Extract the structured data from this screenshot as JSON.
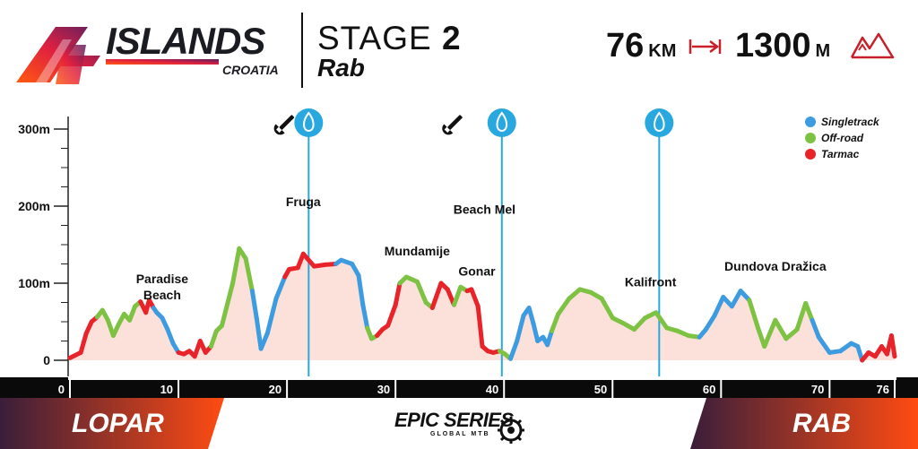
{
  "brand": {
    "number": "4",
    "name": "ISLANDS",
    "country": "CROATIA"
  },
  "stage": {
    "label": "STAGE",
    "number": "2",
    "name": "Rab"
  },
  "stats": {
    "distance": "76",
    "distance_unit": "KM",
    "elevation": "1300",
    "elevation_unit": "M",
    "distance_icon": "arrow-right-bar-icon",
    "elevation_icon": "mountain-peaks-icon"
  },
  "banners": {
    "start": "LOPAR",
    "finish": "RAB"
  },
  "sponsor": {
    "name": "EPIC SERIES",
    "tagline": "GLOBAL MTB",
    "icon": "gear-icon"
  },
  "colors": {
    "singletrack": "#3d9be0",
    "offroad": "#7dc242",
    "tarmac": "#e8232a",
    "fill": "#fbe1da",
    "water": "#29a8e0",
    "banner_dark": "#3a1e3a",
    "banner_light": "#ff4b12"
  },
  "chart_data": {
    "type": "area",
    "xlim": [
      0,
      76
    ],
    "ylim": [
      0,
      300
    ],
    "x_ticks": [
      0,
      10,
      20,
      30,
      40,
      50,
      60,
      70,
      76
    ],
    "y_ticks": [
      0,
      100,
      200,
      300
    ],
    "y_tick_labels": [
      "0",
      "100m",
      "200m",
      "300m"
    ],
    "grid": false,
    "legend_position": "top-right",
    "legend": [
      {
        "name": "Singletrack",
        "color": "#3d9be0"
      },
      {
        "name": "Off-road",
        "color": "#7dc242"
      },
      {
        "name": "Tarmac",
        "color": "#e8232a"
      }
    ],
    "profile": [
      {
        "x": 0,
        "y": 3,
        "s": "t"
      },
      {
        "x": 1,
        "y": 10,
        "s": "t"
      },
      {
        "x": 1.5,
        "y": 35,
        "s": "t"
      },
      {
        "x": 2,
        "y": 50,
        "s": "t"
      },
      {
        "x": 2.5,
        "y": 56,
        "s": "t"
      },
      {
        "x": 3,
        "y": 65,
        "s": "o"
      },
      {
        "x": 3.5,
        "y": 52,
        "s": "o"
      },
      {
        "x": 4,
        "y": 32,
        "s": "o"
      },
      {
        "x": 4.5,
        "y": 47,
        "s": "o"
      },
      {
        "x": 5,
        "y": 60,
        "s": "o"
      },
      {
        "x": 5.5,
        "y": 52,
        "s": "o"
      },
      {
        "x": 6,
        "y": 70,
        "s": "o"
      },
      {
        "x": 6.5,
        "y": 76,
        "s": "o"
      },
      {
        "x": 7,
        "y": 62,
        "s": "t"
      },
      {
        "x": 7.3,
        "y": 78,
        "s": "t"
      },
      {
        "x": 7.7,
        "y": 68,
        "s": "t"
      },
      {
        "x": 8,
        "y": 62,
        "s": "s"
      },
      {
        "x": 8.5,
        "y": 55,
        "s": "s"
      },
      {
        "x": 9,
        "y": 40,
        "s": "s"
      },
      {
        "x": 9.5,
        "y": 22,
        "s": "s"
      },
      {
        "x": 10,
        "y": 10,
        "s": "s"
      },
      {
        "x": 10.5,
        "y": 8,
        "s": "t"
      },
      {
        "x": 11,
        "y": 12,
        "s": "t"
      },
      {
        "x": 11.5,
        "y": 5,
        "s": "t"
      },
      {
        "x": 12,
        "y": 25,
        "s": "t"
      },
      {
        "x": 12.5,
        "y": 10,
        "s": "t"
      },
      {
        "x": 13,
        "y": 18,
        "s": "t"
      },
      {
        "x": 13.5,
        "y": 38,
        "s": "o"
      },
      {
        "x": 14,
        "y": 45,
        "s": "o"
      },
      {
        "x": 15,
        "y": 100,
        "s": "o"
      },
      {
        "x": 15.6,
        "y": 145,
        "s": "o"
      },
      {
        "x": 16.2,
        "y": 132,
        "s": "o"
      },
      {
        "x": 16.8,
        "y": 90,
        "s": "o"
      },
      {
        "x": 17.2,
        "y": 55,
        "s": "s"
      },
      {
        "x": 17.6,
        "y": 15,
        "s": "s"
      },
      {
        "x": 18.2,
        "y": 35,
        "s": "s"
      },
      {
        "x": 19,
        "y": 80,
        "s": "s"
      },
      {
        "x": 19.8,
        "y": 108,
        "s": "s"
      },
      {
        "x": 20.2,
        "y": 118,
        "s": "t"
      },
      {
        "x": 21,
        "y": 120,
        "s": "t"
      },
      {
        "x": 21.5,
        "y": 138,
        "s": "t"
      },
      {
        "x": 22.5,
        "y": 122,
        "s": "t"
      },
      {
        "x": 23.5,
        "y": 124,
        "s": "t"
      },
      {
        "x": 24.5,
        "y": 125,
        "s": "t"
      },
      {
        "x": 25,
        "y": 130,
        "s": "s"
      },
      {
        "x": 26,
        "y": 125,
        "s": "s"
      },
      {
        "x": 26.6,
        "y": 110,
        "s": "s"
      },
      {
        "x": 27,
        "y": 72,
        "s": "s"
      },
      {
        "x": 27.4,
        "y": 42,
        "s": "s"
      },
      {
        "x": 27.8,
        "y": 28,
        "s": "o"
      },
      {
        "x": 28.3,
        "y": 32,
        "s": "o"
      },
      {
        "x": 28.8,
        "y": 40,
        "s": "t"
      },
      {
        "x": 29.3,
        "y": 45,
        "s": "t"
      },
      {
        "x": 30,
        "y": 72,
        "s": "t"
      },
      {
        "x": 30.4,
        "y": 100,
        "s": "t"
      },
      {
        "x": 31,
        "y": 108,
        "s": "o"
      },
      {
        "x": 32,
        "y": 102,
        "s": "o"
      },
      {
        "x": 32.8,
        "y": 75,
        "s": "o"
      },
      {
        "x": 33.4,
        "y": 68,
        "s": "o"
      },
      {
        "x": 34.2,
        "y": 100,
        "s": "t"
      },
      {
        "x": 34.8,
        "y": 92,
        "s": "t"
      },
      {
        "x": 35.4,
        "y": 72,
        "s": "t"
      },
      {
        "x": 36,
        "y": 95,
        "s": "o"
      },
      {
        "x": 36.6,
        "y": 90,
        "s": "o"
      },
      {
        "x": 37,
        "y": 92,
        "s": "t"
      },
      {
        "x": 37.6,
        "y": 70,
        "s": "t"
      },
      {
        "x": 38,
        "y": 18,
        "s": "t"
      },
      {
        "x": 38.5,
        "y": 12,
        "s": "t"
      },
      {
        "x": 39,
        "y": 10,
        "s": "t"
      },
      {
        "x": 39.6,
        "y": 12,
        "s": "t"
      },
      {
        "x": 40.1,
        "y": 8,
        "s": "o"
      },
      {
        "x": 40.6,
        "y": 2,
        "s": "o"
      },
      {
        "x": 41.2,
        "y": 25,
        "s": "s"
      },
      {
        "x": 41.8,
        "y": 58,
        "s": "s"
      },
      {
        "x": 42.3,
        "y": 68,
        "s": "s"
      },
      {
        "x": 42.7,
        "y": 48,
        "s": "s"
      },
      {
        "x": 43.1,
        "y": 25,
        "s": "s"
      },
      {
        "x": 43.6,
        "y": 30,
        "s": "s"
      },
      {
        "x": 44,
        "y": 20,
        "s": "s"
      },
      {
        "x": 44.4,
        "y": 38,
        "s": "s"
      },
      {
        "x": 45,
        "y": 60,
        "s": "o"
      },
      {
        "x": 46,
        "y": 80,
        "s": "o"
      },
      {
        "x": 47,
        "y": 92,
        "s": "o"
      },
      {
        "x": 48,
        "y": 88,
        "s": "o"
      },
      {
        "x": 49,
        "y": 80,
        "s": "o"
      },
      {
        "x": 50,
        "y": 55,
        "s": "o"
      },
      {
        "x": 51,
        "y": 48,
        "s": "o"
      },
      {
        "x": 52,
        "y": 40,
        "s": "o"
      },
      {
        "x": 53,
        "y": 55,
        "s": "o"
      },
      {
        "x": 54,
        "y": 62,
        "s": "o"
      },
      {
        "x": 55,
        "y": 42,
        "s": "o"
      },
      {
        "x": 56,
        "y": 38,
        "s": "o"
      },
      {
        "x": 57,
        "y": 32,
        "s": "o"
      },
      {
        "x": 58,
        "y": 30,
        "s": "o"
      },
      {
        "x": 58.6,
        "y": 40,
        "s": "s"
      },
      {
        "x": 59.4,
        "y": 58,
        "s": "s"
      },
      {
        "x": 60.2,
        "y": 82,
        "s": "s"
      },
      {
        "x": 61,
        "y": 70,
        "s": "s"
      },
      {
        "x": 61.8,
        "y": 90,
        "s": "s"
      },
      {
        "x": 62.6,
        "y": 78,
        "s": "s"
      },
      {
        "x": 63.4,
        "y": 42,
        "s": "o"
      },
      {
        "x": 64,
        "y": 18,
        "s": "o"
      },
      {
        "x": 65,
        "y": 52,
        "s": "o"
      },
      {
        "x": 66,
        "y": 28,
        "s": "o"
      },
      {
        "x": 67,
        "y": 40,
        "s": "o"
      },
      {
        "x": 67.8,
        "y": 74,
        "s": "o"
      },
      {
        "x": 68.4,
        "y": 52,
        "s": "o"
      },
      {
        "x": 69,
        "y": 30,
        "s": "s"
      },
      {
        "x": 70,
        "y": 10,
        "s": "s"
      },
      {
        "x": 71,
        "y": 12,
        "s": "s"
      },
      {
        "x": 72,
        "y": 22,
        "s": "s"
      },
      {
        "x": 72.6,
        "y": 18,
        "s": "s"
      },
      {
        "x": 73,
        "y": 0,
        "s": "s"
      },
      {
        "x": 73.6,
        "y": 10,
        "s": "t"
      },
      {
        "x": 74.2,
        "y": 5,
        "s": "t"
      },
      {
        "x": 74.8,
        "y": 18,
        "s": "t"
      },
      {
        "x": 75.3,
        "y": 8,
        "s": "t"
      },
      {
        "x": 75.7,
        "y": 32,
        "s": "t"
      },
      {
        "x": 76,
        "y": 5,
        "s": "t"
      }
    ],
    "place_labels": [
      {
        "x": 8.5,
        "y": 100,
        "lines": [
          "Paradise",
          "Beach"
        ]
      },
      {
        "x": 21.5,
        "y": 200,
        "lines": [
          "Fruga"
        ]
      },
      {
        "x": 32,
        "y": 136,
        "lines": [
          "Mundamije"
        ]
      },
      {
        "x": 37.5,
        "y": 110,
        "lines": [
          "Gonar"
        ]
      },
      {
        "x": 38.2,
        "y": 190,
        "lines": [
          "Beach Mel"
        ]
      },
      {
        "x": 53.5,
        "y": 96,
        "lines": [
          "Kalifront"
        ]
      },
      {
        "x": 65,
        "y": 116,
        "lines": [
          "Dundova Dražica"
        ]
      }
    ],
    "water_points": [
      22,
      39.8,
      54.3
    ],
    "service_points": [
      19.5,
      35
    ]
  }
}
